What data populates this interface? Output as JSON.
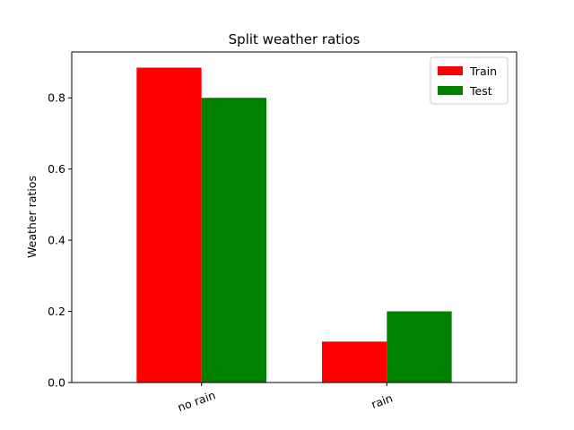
{
  "chart_data": {
    "type": "bar",
    "title": "Split weather ratios",
    "xlabel": "",
    "ylabel": "Weather ratios",
    "categories": [
      "no rain",
      "rain"
    ],
    "series": [
      {
        "name": "Train",
        "color": "#ff0000",
        "values": [
          0.885,
          0.115
        ]
      },
      {
        "name": "Test",
        "color": "#008000",
        "values": [
          0.8,
          0.2
        ]
      }
    ],
    "ylim": [
      0,
      0.929
    ],
    "yticks": [
      0.0,
      0.2,
      0.4,
      0.6,
      0.8
    ],
    "ytick_labels": [
      "0.0",
      "0.2",
      "0.4",
      "0.6",
      "0.8"
    ],
    "xtick_rotation": 20,
    "legend_position": "top-right",
    "grid": false
  }
}
